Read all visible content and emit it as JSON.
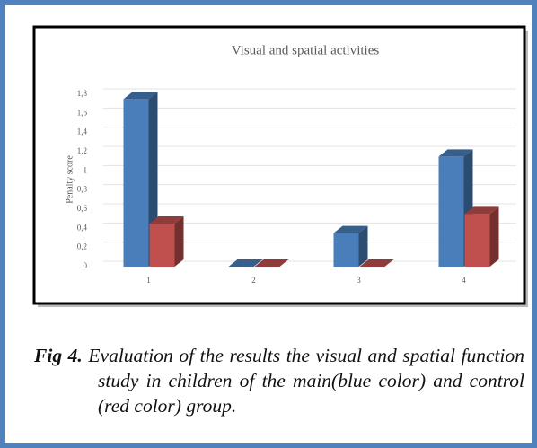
{
  "chart_data": {
    "type": "bar3d",
    "title": "Visual and spatial activities",
    "ylabel": "Penalty score",
    "categories": [
      "1",
      "2",
      "3",
      "4"
    ],
    "series": [
      {
        "color": "#4a7ebb",
        "values": [
          1.75,
          0,
          0.35,
          1.15
        ]
      },
      {
        "color": "#c0504d",
        "values": [
          0.45,
          0,
          0,
          0.55
        ]
      }
    ],
    "ylim": [
      0,
      1.8
    ],
    "yticks": [
      0,
      {
        "value": 0.2,
        "label": "0,2"
      },
      {
        "value": 0.4,
        "label": "0,4"
      },
      {
        "value": 0.6,
        "label": "0,6"
      },
      {
        "value": 0.8,
        "label": "0,8"
      },
      1,
      {
        "value": 1.2,
        "label": "1,2"
      },
      {
        "value": 1.4,
        "label": "1,4"
      },
      {
        "value": 1.6,
        "label": "1,6"
      },
      {
        "value": 1.8,
        "label": "1,8"
      }
    ],
    "grid": true
  },
  "caption": {
    "label": "Fig 4.",
    "text": "Evaluation of the results the visual and spatial function study in children of the main(blue color) and control (red color) group."
  }
}
